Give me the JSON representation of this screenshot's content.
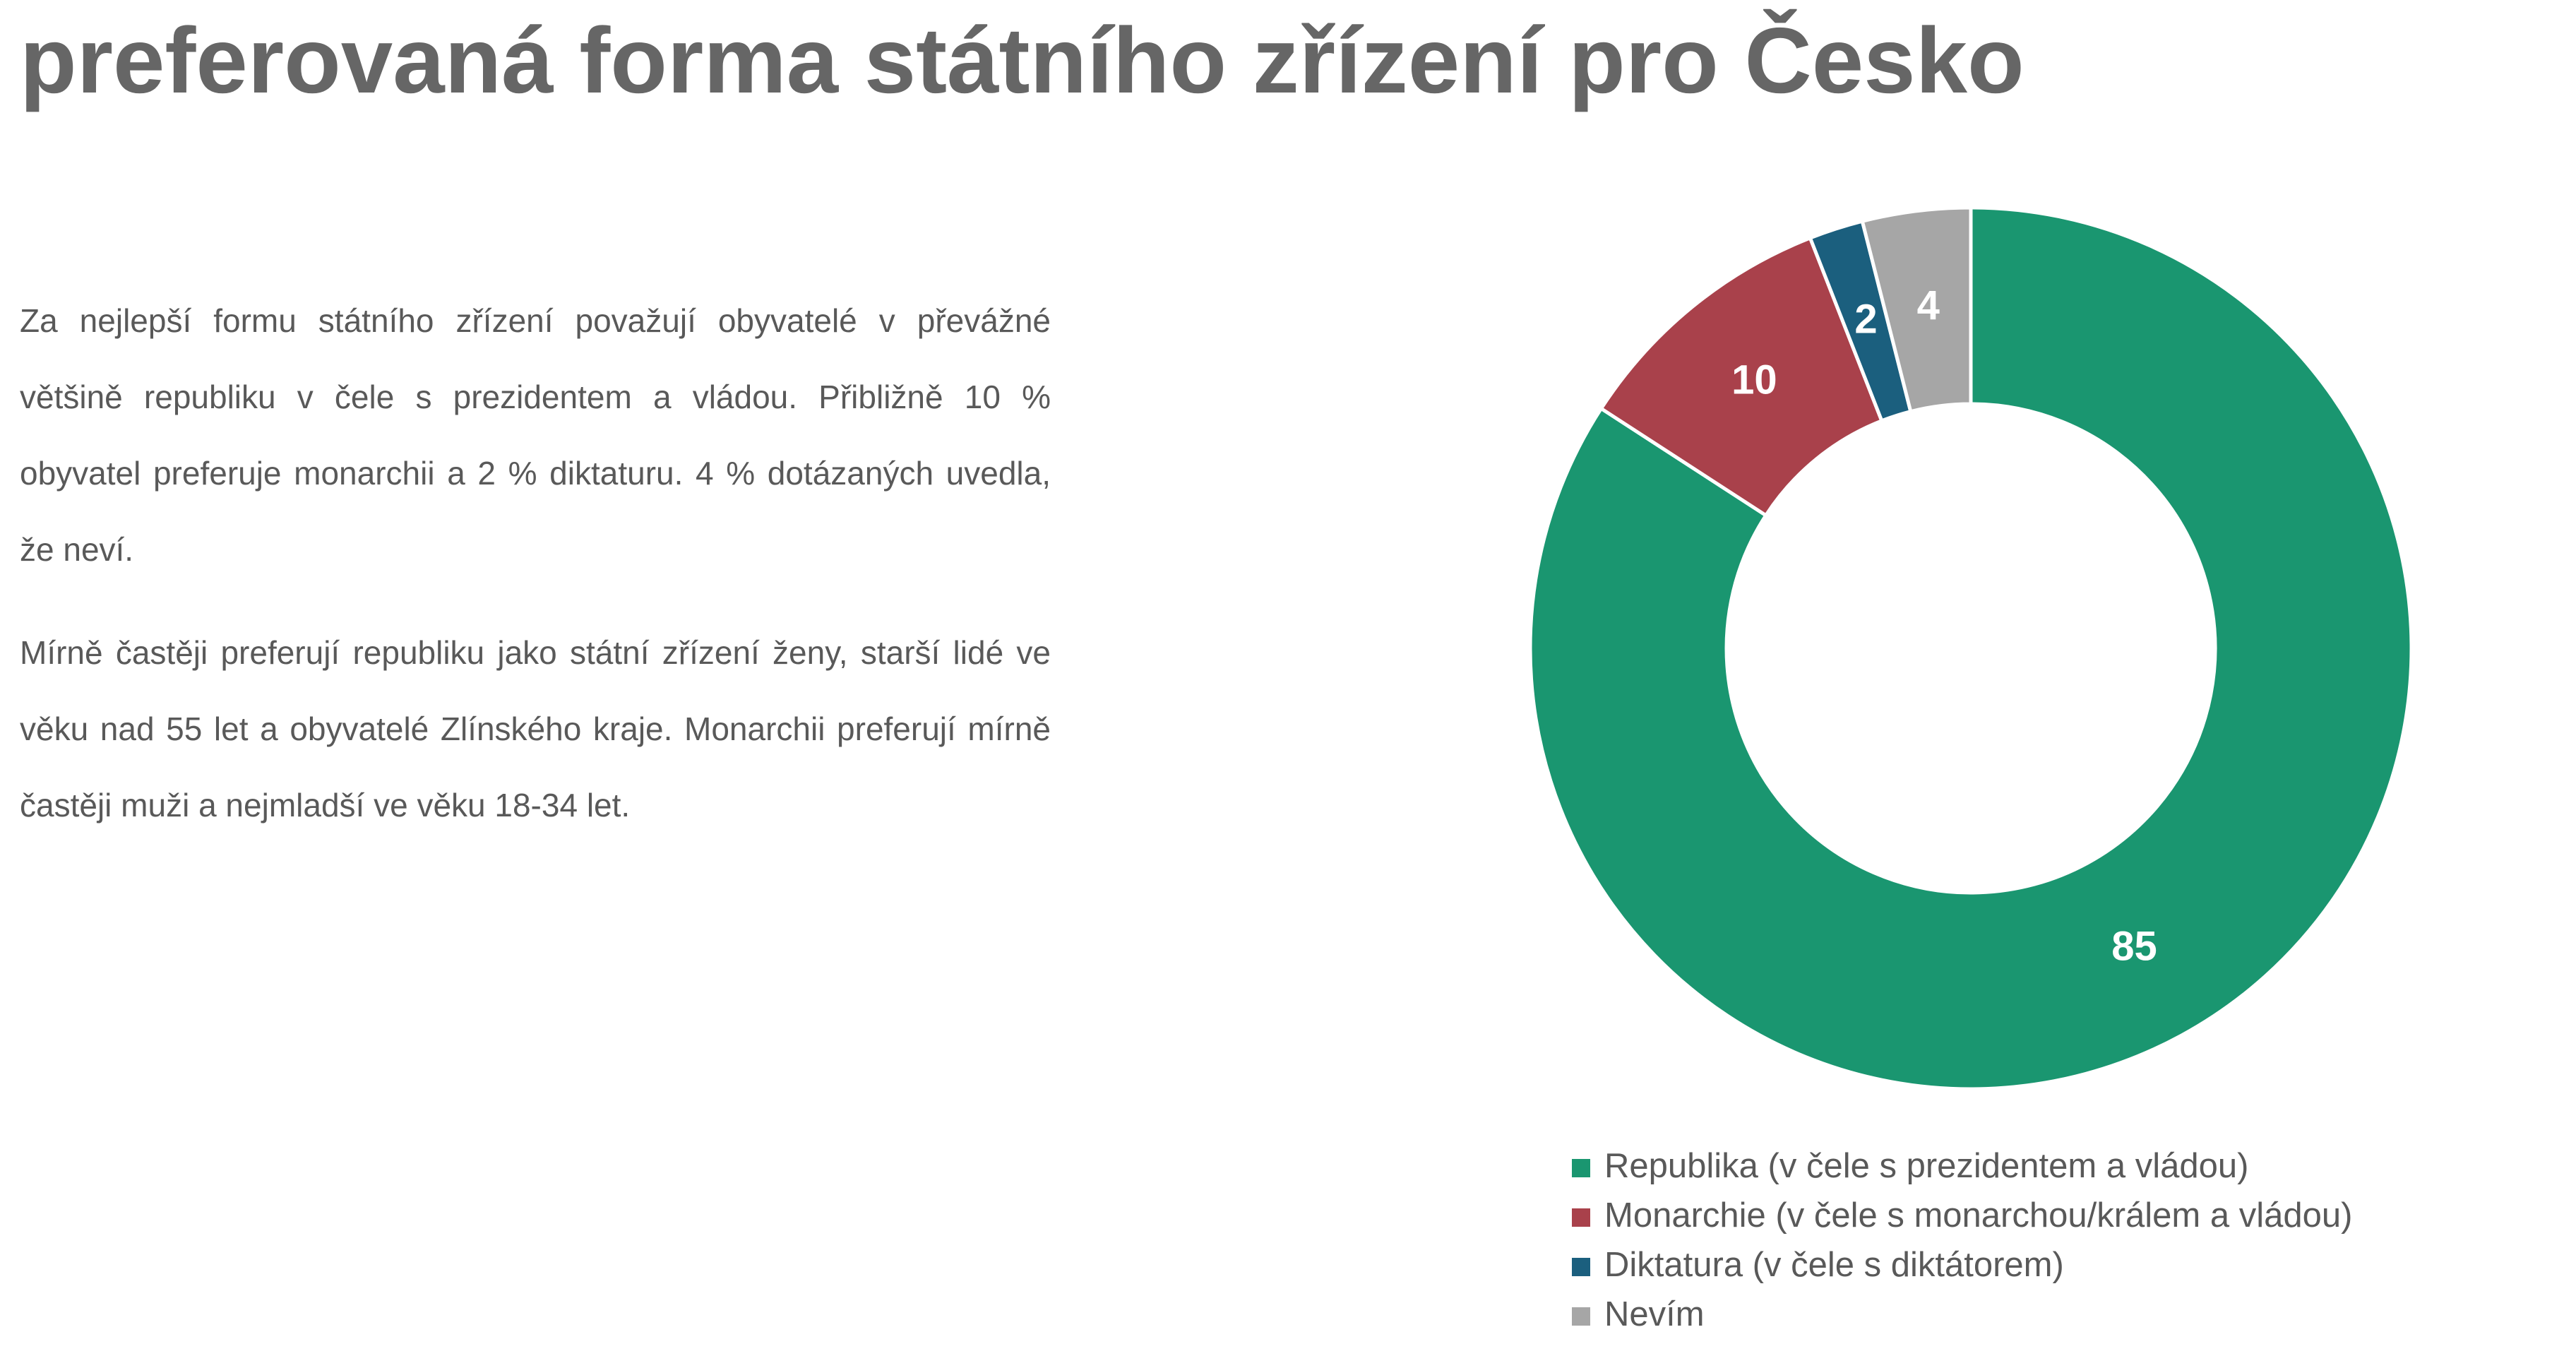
{
  "title": "preferovaná forma státního zřízení pro Česko",
  "paragraphs": [
    "Za nejlepší formu státního zřízení považují obyvatelé v převážné většině republiku v čele s prezidentem a vládou. Přibližně 10 % obyvatel preferuje monarchii a 2 % diktaturu. 4 % dotázaných uvedla, že neví.",
    "Mírně častěji preferují republiku jako státní zřízení ženy, starší lidé ve věku nad 55 let a obyvatelé Zlínského kraje. Monarchii preferují mírně častěji muži a nejmladší ve věku 18-34 let."
  ],
  "chart_data": {
    "type": "pie",
    "donut": true,
    "categories": [
      "Republika (v čele s prezidentem a vládou)",
      "Monarchie (v čele s monarchou/králem a vládou)",
      "Diktatura (v čele s diktátorem)",
      "Nevím"
    ],
    "values": [
      85,
      10,
      2,
      4
    ],
    "colors": [
      "#1a9670",
      "#a9414b",
      "#1b5f7e",
      "#a6a6a6"
    ],
    "legend": "bottom"
  }
}
